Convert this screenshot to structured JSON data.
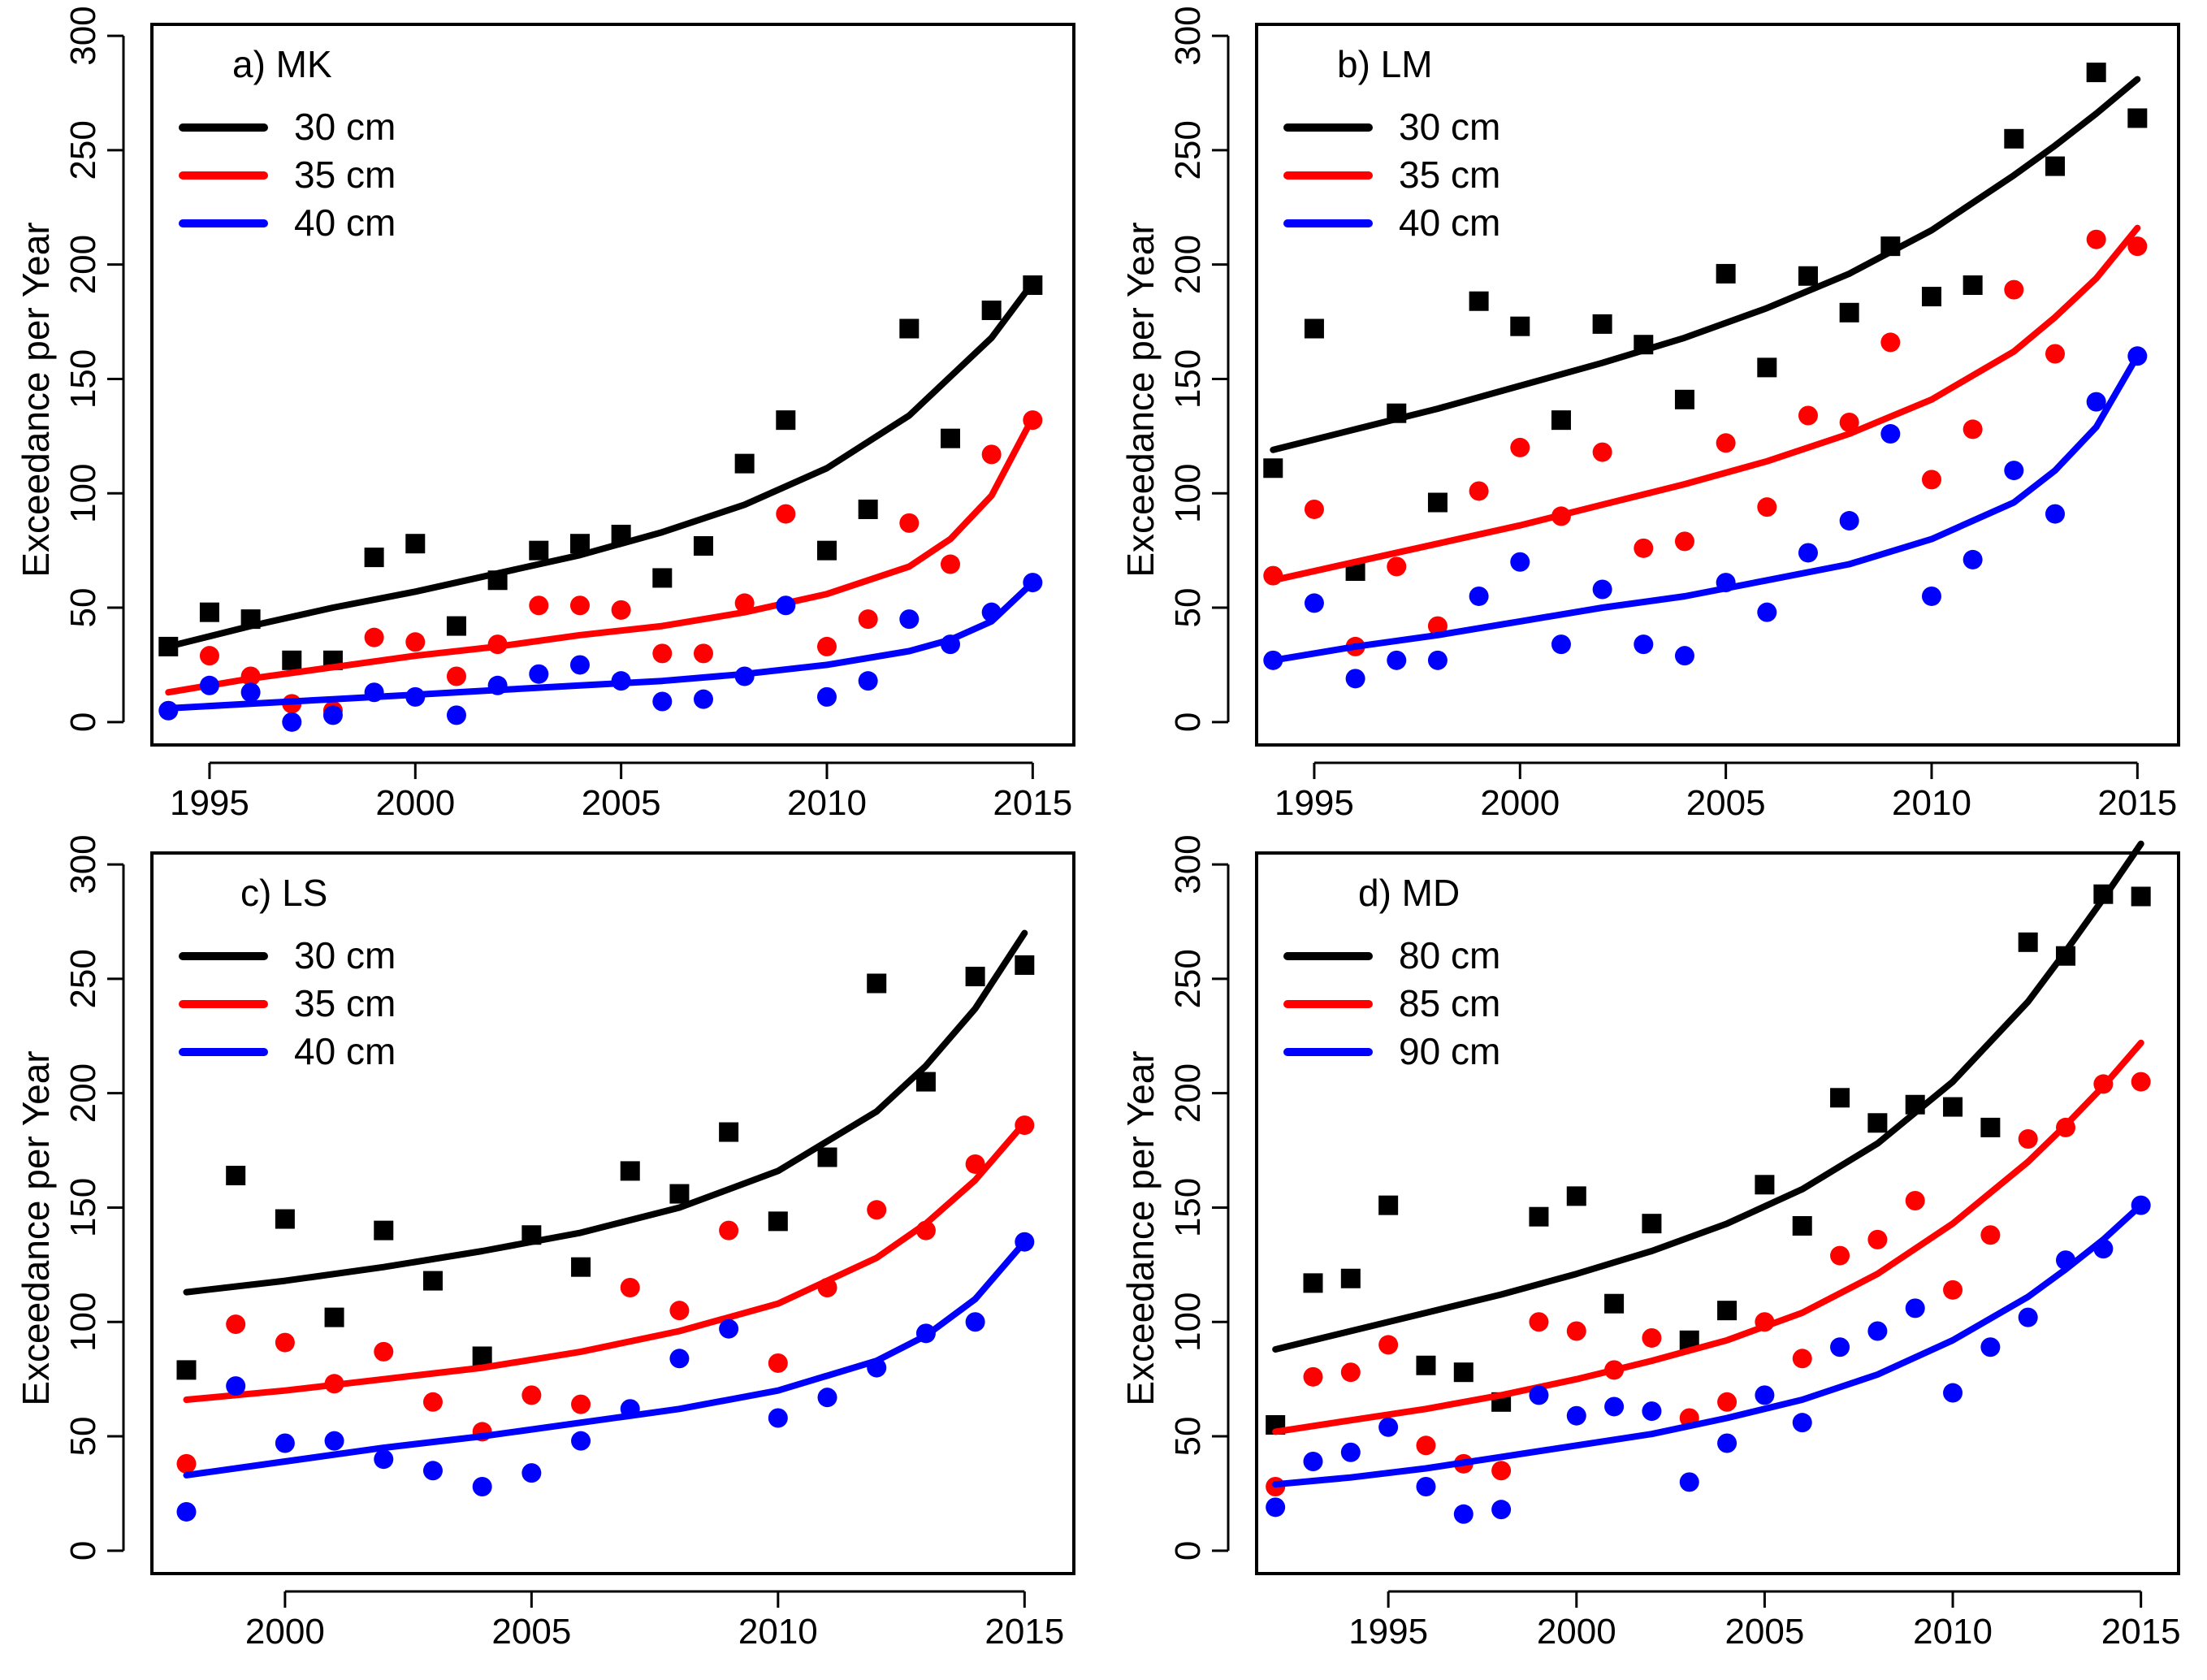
{
  "chart_data": [
    {
      "type": "scatter",
      "title": "a) MK",
      "xlabel": "",
      "ylabel": "Exceedance per Year",
      "xlim": [
        1993.6,
        2016.0
      ],
      "ylim": [
        -10,
        305
      ],
      "xticks": [
        1995,
        2000,
        2005,
        2010,
        2015
      ],
      "yticks": [
        0,
        50,
        100,
        150,
        200,
        250,
        300
      ],
      "legend_position": "top-left",
      "grid": false,
      "series": [
        {
          "name": "30 cm",
          "color": "#000000",
          "marker": "square",
          "x": [
            1994,
            1995,
            1996,
            1997,
            1998,
            1999,
            2000,
            2001,
            2002,
            2003,
            2004,
            2005,
            2006,
            2007,
            2008,
            2009,
            2010,
            2011,
            2012,
            2013,
            2014,
            2015
          ],
          "y": [
            33,
            48,
            45,
            27,
            27,
            72,
            78,
            42,
            62,
            75,
            78,
            82,
            63,
            77,
            113,
            132,
            75,
            93,
            172,
            124,
            180,
            191
          ],
          "fit_x": [
            1994,
            1996,
            1998,
            2000,
            2002,
            2004,
            2006,
            2008,
            2010,
            2012,
            2013,
            2014,
            2015
          ],
          "fit_y": [
            33,
            42,
            50,
            57,
            65,
            73,
            83,
            95,
            111,
            134,
            151,
            168,
            192
          ]
        },
        {
          "name": "35 cm",
          "color": "#ff0000",
          "marker": "circle",
          "x": [
            1995,
            1996,
            1997,
            1998,
            1999,
            2000,
            2001,
            2002,
            2003,
            2004,
            2005,
            2006,
            2007,
            2008,
            2009,
            2010,
            2011,
            2012,
            2013,
            2014,
            2015
          ],
          "y": [
            29,
            20,
            8,
            5,
            37,
            35,
            20,
            34,
            51,
            51,
            49,
            30,
            30,
            52,
            91,
            33,
            45,
            87,
            69,
            117,
            132
          ],
          "fit_x": [
            1994,
            1996,
            1998,
            2000,
            2002,
            2004,
            2006,
            2008,
            2010,
            2012,
            2013,
            2014,
            2015
          ],
          "fit_y": [
            13,
            19,
            24,
            29,
            33,
            38,
            42,
            48,
            56,
            68,
            80,
            99,
            133
          ]
        },
        {
          "name": "40 cm",
          "color": "#0000ff",
          "marker": "circle",
          "x": [
            1994,
            1995,
            1996,
            1997,
            1998,
            1999,
            2000,
            2001,
            2002,
            2003,
            2004,
            2005,
            2006,
            2007,
            2008,
            2009,
            2010,
            2011,
            2012,
            2013,
            2014,
            2015
          ],
          "y": [
            5,
            16,
            13,
            0,
            3,
            13,
            11,
            3,
            16,
            21,
            25,
            18,
            9,
            10,
            20,
            51,
            11,
            18,
            45,
            34,
            48,
            61
          ],
          "fit_x": [
            1994,
            1996,
            1998,
            2000,
            2002,
            2004,
            2006,
            2008,
            2010,
            2012,
            2013,
            2014,
            2015
          ],
          "fit_y": [
            6,
            8,
            10,
            12,
            14,
            16,
            18,
            21,
            25,
            31,
            36,
            44,
            61
          ]
        }
      ]
    },
    {
      "type": "scatter",
      "title": "b) LM",
      "xlabel": "",
      "ylabel": "Exceedance per Year",
      "xlim": [
        1993.6,
        2016.0
      ],
      "ylim": [
        -10,
        305
      ],
      "xticks": [
        1995,
        2000,
        2005,
        2010,
        2015
      ],
      "yticks": [
        0,
        50,
        100,
        150,
        200,
        250,
        300
      ],
      "legend_position": "top-left",
      "grid": false,
      "series": [
        {
          "name": "30 cm",
          "color": "#000000",
          "marker": "square",
          "x": [
            1994,
            1995,
            1996,
            1997,
            1998,
            1999,
            2000,
            2001,
            2002,
            2003,
            2004,
            2005,
            2006,
            2007,
            2008,
            2009,
            2010,
            2011,
            2012,
            2013,
            2014,
            2015
          ],
          "y": [
            111,
            172,
            66,
            135,
            96,
            184,
            173,
            132,
            174,
            165,
            141,
            196,
            155,
            195,
            179,
            208,
            186,
            191,
            255,
            243,
            284,
            264
          ],
          "fit_x": [
            1994,
            1996,
            1998,
            2000,
            2002,
            2004,
            2006,
            2008,
            2010,
            2012,
            2013,
            2014,
            2015
          ],
          "fit_y": [
            119,
            128,
            137,
            147,
            157,
            168,
            181,
            196,
            215,
            239,
            252,
            266,
            281
          ]
        },
        {
          "name": "35 cm",
          "color": "#ff0000",
          "marker": "circle",
          "x": [
            1994,
            1995,
            1996,
            1997,
            1998,
            1999,
            2000,
            2001,
            2002,
            2003,
            2004,
            2005,
            2006,
            2007,
            2008,
            2009,
            2010,
            2011,
            2012,
            2013,
            2014,
            2015
          ],
          "y": [
            64,
            93,
            33,
            68,
            42,
            101,
            120,
            90,
            118,
            76,
            79,
            122,
            94,
            134,
            131,
            166,
            106,
            128,
            189,
            161,
            211,
            208
          ],
          "fit_x": [
            1994,
            1996,
            1998,
            2000,
            2002,
            2004,
            2006,
            2008,
            2010,
            2012,
            2013,
            2014,
            2015
          ],
          "fit_y": [
            62,
            70,
            78,
            86,
            95,
            104,
            114,
            126,
            141,
            162,
            177,
            194,
            216
          ]
        },
        {
          "name": "40 cm",
          "color": "#0000ff",
          "marker": "circle",
          "x": [
            1994,
            1995,
            1996,
            1997,
            1998,
            1999,
            2000,
            2001,
            2002,
            2003,
            2004,
            2005,
            2006,
            2007,
            2008,
            2009,
            2010,
            2011,
            2012,
            2013,
            2014,
            2015
          ],
          "y": [
            27,
            52,
            19,
            27,
            27,
            55,
            70,
            34,
            58,
            34,
            29,
            61,
            48,
            74,
            88,
            126,
            55,
            71,
            110,
            91,
            140,
            160
          ],
          "fit_x": [
            1994,
            1996,
            1998,
            2000,
            2002,
            2004,
            2006,
            2008,
            2010,
            2012,
            2013,
            2014,
            2015
          ],
          "fit_y": [
            27,
            33,
            38,
            44,
            50,
            55,
            62,
            69,
            80,
            96,
            110,
            129,
            160
          ]
        }
      ]
    },
    {
      "type": "scatter",
      "title": "c) LS",
      "xlabel": "",
      "ylabel": "Exceedance per Year",
      "xlim": [
        1997.3,
        2016.0
      ],
      "ylim": [
        -10,
        305
      ],
      "xticks": [
        2000,
        2005,
        2010,
        2015
      ],
      "yticks": [
        0,
        50,
        100,
        150,
        200,
        250,
        300
      ],
      "legend_position": "top-left",
      "grid": false,
      "series": [
        {
          "name": "30 cm",
          "color": "#000000",
          "marker": "square",
          "x": [
            1998,
            1999,
            2000,
            2001,
            2002,
            2003,
            2004,
            2005,
            2006,
            2007,
            2008,
            2009,
            2010,
            2011,
            2012,
            2013,
            2014,
            2015
          ],
          "y": [
            79,
            164,
            145,
            102,
            140,
            118,
            85,
            138,
            124,
            166,
            156,
            183,
            144,
            172,
            248,
            205,
            251,
            256
          ],
          "fit_x": [
            1998,
            2000,
            2002,
            2004,
            2006,
            2008,
            2010,
            2012,
            2013,
            2014,
            2015
          ],
          "fit_y": [
            113,
            118,
            124,
            131,
            139,
            150,
            166,
            192,
            212,
            237,
            270
          ]
        },
        {
          "name": "35 cm",
          "color": "#ff0000",
          "marker": "circle",
          "x": [
            1998,
            1999,
            2000,
            2001,
            2002,
            2003,
            2004,
            2005,
            2006,
            2007,
            2008,
            2009,
            2010,
            2011,
            2012,
            2013,
            2014,
            2015
          ],
          "y": [
            38,
            99,
            91,
            73,
            87,
            65,
            52,
            68,
            64,
            115,
            105,
            140,
            82,
            115,
            149,
            140,
            169,
            186
          ],
          "fit_x": [
            1998,
            2000,
            2002,
            2004,
            2006,
            2008,
            2010,
            2012,
            2013,
            2014,
            2015
          ],
          "fit_y": [
            66,
            70,
            75,
            80,
            87,
            96,
            108,
            128,
            143,
            162,
            187
          ]
        },
        {
          "name": "40 cm",
          "color": "#0000ff",
          "marker": "circle",
          "x": [
            1998,
            1999,
            2000,
            2001,
            2002,
            2003,
            2004,
            2005,
            2006,
            2007,
            2008,
            2009,
            2010,
            2011,
            2012,
            2013,
            2014,
            2015
          ],
          "y": [
            17,
            72,
            47,
            48,
            40,
            35,
            28,
            34,
            48,
            62,
            84,
            97,
            58,
            67,
            80,
            95,
            100,
            135
          ],
          "fit_x": [
            1998,
            2000,
            2002,
            2004,
            2006,
            2008,
            2010,
            2012,
            2013,
            2014,
            2015
          ],
          "fit_y": [
            33,
            39,
            45,
            50,
            56,
            62,
            70,
            83,
            94,
            110,
            135
          ]
        }
      ]
    },
    {
      "type": "scatter",
      "title": "d) MD",
      "xlabel": "",
      "ylabel": "Exceedance per Year",
      "xlim": [
        1991.5,
        2016.0
      ],
      "ylim": [
        -10,
        305
      ],
      "xticks": [
        1995,
        2000,
        2005,
        2010,
        2015
      ],
      "yticks": [
        0,
        50,
        100,
        150,
        200,
        250,
        300
      ],
      "legend_position": "top-left",
      "grid": false,
      "series": [
        {
          "name": "80 cm",
          "color": "#000000",
          "marker": "square",
          "x": [
            1992,
            1993,
            1994,
            1995,
            1996,
            1997,
            1998,
            1999,
            2000,
            2001,
            2002,
            2003,
            2004,
            2005,
            2006,
            2007,
            2008,
            2009,
            2010,
            2011,
            2012,
            2013,
            2014,
            2015
          ],
          "y": [
            55,
            117,
            119,
            151,
            81,
            78,
            65,
            146,
            155,
            108,
            143,
            92,
            105,
            160,
            142,
            198,
            187,
            195,
            194,
            185,
            266,
            260,
            287,
            286
          ],
          "fit_x": [
            1992,
            1994,
            1996,
            1998,
            2000,
            2002,
            2004,
            2006,
            2008,
            2010,
            2012,
            2013,
            2014,
            2015
          ],
          "fit_y": [
            88,
            96,
            104,
            112,
            121,
            131,
            143,
            158,
            178,
            205,
            240,
            262,
            285,
            309
          ]
        },
        {
          "name": "85 cm",
          "color": "#ff0000",
          "marker": "circle",
          "x": [
            1992,
            1993,
            1994,
            1995,
            1996,
            1997,
            1998,
            1999,
            2000,
            2001,
            2002,
            2003,
            2004,
            2005,
            2006,
            2007,
            2008,
            2009,
            2010,
            2011,
            2012,
            2013,
            2014,
            2015
          ],
          "y": [
            28,
            76,
            78,
            90,
            46,
            38,
            35,
            100,
            96,
            79,
            93,
            58,
            65,
            100,
            84,
            129,
            136,
            153,
            114,
            138,
            180,
            185,
            204,
            205
          ],
          "fit_x": [
            1992,
            1994,
            1996,
            1998,
            2000,
            2002,
            2004,
            2006,
            2008,
            2010,
            2012,
            2013,
            2014,
            2015
          ],
          "fit_y": [
            52,
            57,
            62,
            68,
            75,
            83,
            92,
            104,
            121,
            143,
            170,
            186,
            203,
            222
          ]
        },
        {
          "name": "90 cm",
          "color": "#0000ff",
          "marker": "circle",
          "x": [
            1992,
            1993,
            1994,
            1995,
            1996,
            1997,
            1998,
            1999,
            2000,
            2001,
            2002,
            2003,
            2004,
            2005,
            2006,
            2007,
            2008,
            2009,
            2010,
            2011,
            2012,
            2013,
            2014,
            2015
          ],
          "y": [
            19,
            39,
            43,
            54,
            28,
            16,
            18,
            68,
            59,
            63,
            61,
            30,
            47,
            68,
            56,
            89,
            96,
            106,
            69,
            89,
            102,
            127,
            132,
            151
          ],
          "fit_x": [
            1992,
            1994,
            1996,
            1998,
            2000,
            2002,
            2004,
            2006,
            2008,
            2010,
            2012,
            2013,
            2014,
            2015
          ],
          "fit_y": [
            29,
            32,
            36,
            41,
            46,
            51,
            58,
            66,
            77,
            92,
            111,
            123,
            136,
            151
          ]
        }
      ]
    }
  ]
}
